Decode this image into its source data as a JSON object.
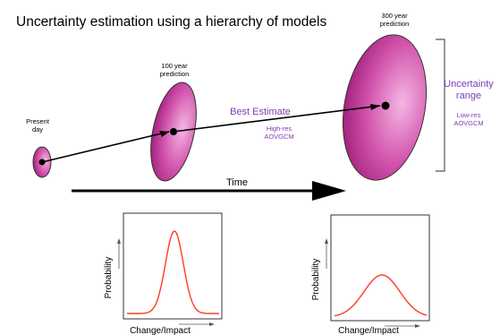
{
  "diagram": {
    "title": "Uncertainty estimation using a hierarchy of models",
    "stages": {
      "present": {
        "label_line1": "Present",
        "label_line2": "day"
      },
      "y100": {
        "label_line1": "100 year",
        "label_line2": "prediction"
      },
      "y300": {
        "label_line1": "300 year",
        "label_line2": "prediction"
      }
    },
    "best_estimate": {
      "label": "Best Estimate",
      "sublabel_line1": "High-res",
      "sublabel_line2": "AOVGCM"
    },
    "uncertainty": {
      "label_line1": "Uncertainty",
      "label_line2": "range",
      "sublabel_line1": "Low-res",
      "sublabel_line2": "AOVGCM"
    },
    "time_label": "Time",
    "plots": [
      {
        "ylabel": "Probability",
        "xlabel": "Change/Impact",
        "shape": "narrow-peak"
      },
      {
        "ylabel": "Probability",
        "xlabel": "Change/Impact",
        "shape": "wide-peak"
      }
    ],
    "colors": {
      "ellipse_dark": "#9c1a78",
      "ellipse_light": "#ef9bd8",
      "accent_text": "#7a3fb0",
      "curve": "#ff3b1f",
      "ink": "#000000"
    }
  }
}
